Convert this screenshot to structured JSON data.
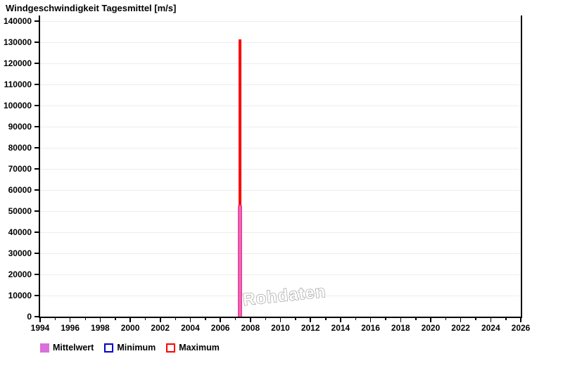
{
  "title": "Windgeschwindigkeit Tagesmittel [m/s]",
  "watermark": "Rohdaten",
  "legend": {
    "items": [
      {
        "label": "Mittelwert",
        "swatch": "filled",
        "color": "#db6fdb"
      },
      {
        "label": "Minimum",
        "swatch": "outlined",
        "color": "#0000cc"
      },
      {
        "label": "Maximum",
        "swatch": "outlined",
        "color": "#ff0000"
      }
    ]
  },
  "chart_data": {
    "type": "bar",
    "title": "Windgeschwindigkeit Tagesmittel [m/s]",
    "xlabel": "",
    "ylabel": "",
    "x_range": [
      1994,
      2026
    ],
    "x_major_ticks": [
      1994,
      1996,
      1998,
      2000,
      2002,
      2004,
      2006,
      2008,
      2010,
      2012,
      2014,
      2016,
      2018,
      2020,
      2022,
      2024,
      2026
    ],
    "x_minor_tick_step": 1,
    "y_range": [
      0,
      140000
    ],
    "y_ticks": [
      0,
      10000,
      20000,
      30000,
      40000,
      50000,
      60000,
      70000,
      80000,
      90000,
      100000,
      110000,
      120000,
      130000,
      140000
    ],
    "grid": "horizontal",
    "legend_position": "bottom-left",
    "series": [
      {
        "name": "Mittelwert",
        "style": "filled-bar",
        "color": "#db6fdb"
      },
      {
        "name": "Minimum",
        "style": "outline-bar",
        "color": "#0000cc"
      },
      {
        "name": "Maximum",
        "style": "outline-bar",
        "color": "#ff0000"
      }
    ],
    "bars": [
      {
        "x": 2007.3,
        "maximum": 131300,
        "mittelwert": 52700
      }
    ],
    "colors": {
      "maximum": "#ff0000",
      "mittelwert_fill": "#db6fdb",
      "mittelwert_edge": "#ff3a70",
      "gridline": "#ededed",
      "axis": "#000000",
      "watermark": "#8f8f8f"
    }
  }
}
